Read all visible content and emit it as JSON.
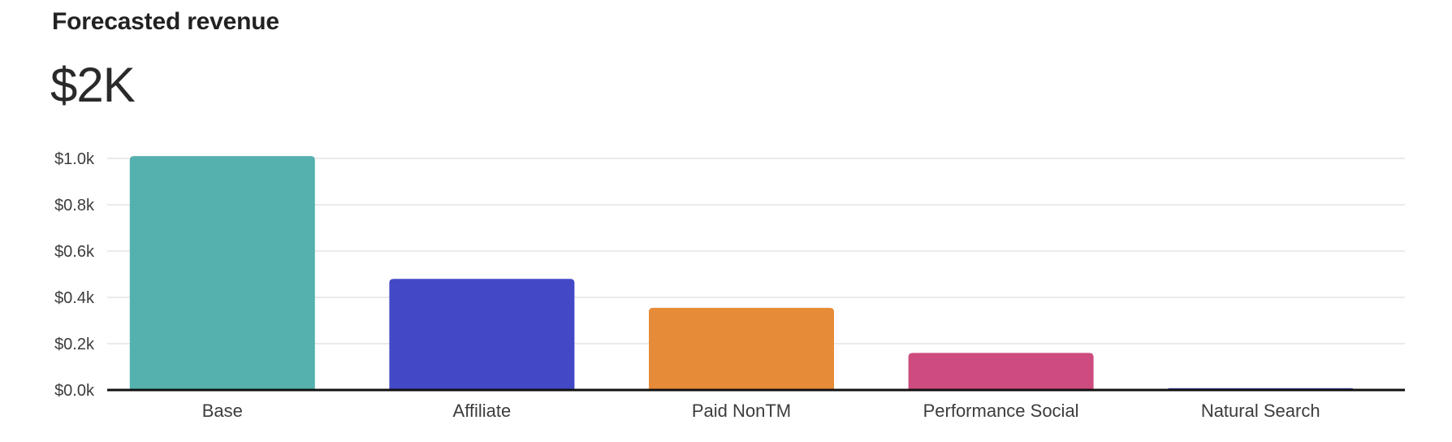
{
  "card": {
    "title": "Forecasted revenue",
    "total_value": "$2K"
  },
  "chart_data": {
    "type": "bar",
    "categories": [
      "Base",
      "Affiliate",
      "Paid NonTM",
      "Performance Social",
      "Natural Search"
    ],
    "values": [
      1010,
      480,
      355,
      160,
      8
    ],
    "colors": [
      "#55b1ad",
      "#4349c6",
      "#e68b37",
      "#cd4b7e",
      "#3d53c4"
    ],
    "ylim": [
      0,
      1000
    ],
    "yticks": [
      0,
      200,
      400,
      600,
      800,
      1000
    ],
    "ytick_labels": [
      "$0.0k",
      "$0.2k",
      "$0.4k",
      "$0.6k",
      "$0.8k",
      "$1.0k"
    ],
    "title": "",
    "xlabel": "",
    "ylabel": "",
    "grid": true,
    "legend": "none"
  }
}
